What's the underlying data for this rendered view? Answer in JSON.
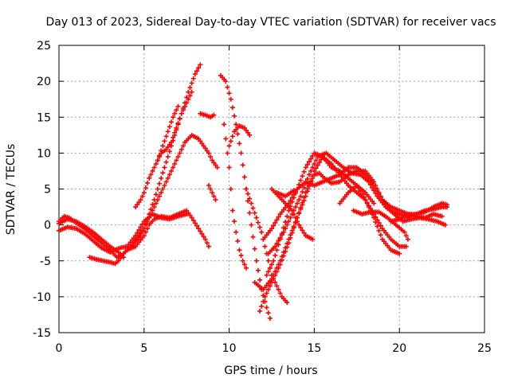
{
  "chart_data": {
    "type": "scatter",
    "title": "Day 013 of 2023, Sidereal Day-to-day VTEC variation (SDTVAR) for receiver vacs",
    "xlabel": "GPS time / hours",
    "ylabel": "SDTVAR / TECUs",
    "xlim": [
      0,
      25
    ],
    "ylim": [
      -15,
      25
    ],
    "xticks": [
      "0",
      "5",
      "10",
      "15",
      "20",
      "25"
    ],
    "yticks": [
      "-15",
      "-10",
      "-5",
      "0",
      "5",
      "10",
      "15",
      "20",
      "25"
    ],
    "grid": true,
    "marker": "+",
    "marker_color": "#ff0000",
    "legend": "none",
    "series": [
      {
        "points": [
          [
            0,
            0.5
          ],
          [
            0.3,
            1.2
          ],
          [
            0.6,
            1.0
          ],
          [
            1.0,
            0.3
          ],
          [
            1.5,
            -0.5
          ],
          [
            2.0,
            -1.5
          ],
          [
            2.5,
            -2.5
          ],
          [
            3.0,
            -3.5
          ],
          [
            3.4,
            -4.5
          ],
          [
            3.7,
            -4.2
          ],
          [
            4.0,
            -3.5
          ],
          [
            4.5,
            -3.0
          ],
          [
            5.0,
            -1.5
          ],
          [
            5.3,
            0.0
          ],
          [
            5.6,
            0.8
          ],
          [
            6.0,
            1.2
          ],
          [
            6.5,
            1.0
          ],
          [
            7.0,
            1.5
          ],
          [
            7.5,
            2.0
          ],
          [
            7.8,
            1.0
          ],
          [
            8.2,
            -0.5
          ],
          [
            8.6,
            -2.0
          ],
          [
            8.8,
            -3.0
          ]
        ]
      },
      {
        "points": [
          [
            0,
            -0.8
          ],
          [
            0.5,
            -0.3
          ],
          [
            1.0,
            -0.5
          ],
          [
            1.5,
            -1.2
          ],
          [
            2.0,
            -2.2
          ],
          [
            2.5,
            -3.2
          ],
          [
            3.0,
            -3.8
          ],
          [
            3.3,
            -3.5
          ],
          [
            3.6,
            -3.2
          ],
          [
            4.0,
            -3.0
          ],
          [
            4.5,
            -1.5
          ],
          [
            5.0,
            0.5
          ],
          [
            5.5,
            1.5
          ],
          [
            6.0,
            1.0
          ],
          [
            6.5,
            0.8
          ],
          [
            7.0,
            1.2
          ],
          [
            7.5,
            1.5
          ]
        ]
      },
      {
        "points": [
          [
            0,
            0.2
          ],
          [
            0.5,
            0.8
          ],
          [
            1.0,
            0.5
          ],
          [
            1.5,
            -0.2
          ],
          [
            2.0,
            -1.0
          ],
          [
            2.5,
            -2.0
          ],
          [
            3.0,
            -3.0
          ],
          [
            3.5,
            -3.8
          ],
          [
            3.8,
            -4.5
          ]
        ]
      },
      {
        "points": [
          [
            1.8,
            -4.5
          ],
          [
            2.2,
            -4.8
          ],
          [
            2.6,
            -5.0
          ],
          [
            3.0,
            -5.2
          ],
          [
            3.3,
            -5.4
          ],
          [
            3.5,
            -5.0
          ],
          [
            3.8,
            -4.0
          ],
          [
            4.2,
            -3.0
          ],
          [
            4.6,
            -2.0
          ],
          [
            5.0,
            -0.5
          ],
          [
            5.4,
            1.5
          ],
          [
            5.8,
            3.5
          ],
          [
            6.2,
            5.5
          ],
          [
            6.6,
            7.5
          ],
          [
            7.0,
            9.5
          ],
          [
            7.4,
            11.5
          ],
          [
            7.8,
            12.5
          ],
          [
            8.2,
            12.0
          ],
          [
            8.5,
            11.0
          ],
          [
            8.8,
            10.0
          ],
          [
            9.0,
            9.0
          ],
          [
            9.3,
            8.0
          ]
        ]
      },
      {
        "points": [
          [
            4.2,
            -3.2
          ],
          [
            4.6,
            -1.8
          ],
          [
            5.0,
            -0.5
          ],
          [
            5.3,
            1.5
          ],
          [
            5.6,
            3.5
          ],
          [
            6.0,
            6.5
          ],
          [
            6.4,
            9.5
          ],
          [
            6.8,
            12.5
          ],
          [
            7.2,
            15.5
          ],
          [
            7.6,
            18.5
          ],
          [
            8.0,
            21.0
          ],
          [
            8.3,
            22.3
          ]
        ]
      },
      {
        "points": [
          [
            4.5,
            2.5
          ],
          [
            4.8,
            3.5
          ],
          [
            5.0,
            4.5
          ],
          [
            5.3,
            6.5
          ],
          [
            5.6,
            8.0
          ],
          [
            6.0,
            10.0
          ],
          [
            6.3,
            10.5
          ],
          [
            6.6,
            11.5
          ],
          [
            6.9,
            13.5
          ],
          [
            7.2,
            15.5
          ],
          [
            7.5,
            17.0
          ],
          [
            7.8,
            18.5
          ]
        ]
      },
      {
        "points": [
          [
            5.8,
            9.0
          ],
          [
            6.1,
            11.0
          ],
          [
            6.4,
            13.0
          ],
          [
            6.7,
            15.0
          ],
          [
            7.0,
            16.5
          ]
        ]
      },
      {
        "points": [
          [
            8.3,
            15.5
          ],
          [
            8.6,
            15.3
          ],
          [
            8.9,
            15.0
          ],
          [
            9.1,
            15.3
          ]
        ]
      },
      {
        "points": [
          [
            8.8,
            5.5
          ],
          [
            9.0,
            4.5
          ],
          [
            9.2,
            3.5
          ]
        ]
      },
      {
        "points": [
          [
            9.5,
            20.8
          ],
          [
            9.8,
            20.0
          ],
          [
            10.1,
            17.5
          ],
          [
            10.4,
            14.0
          ],
          [
            10.7,
            10.0
          ],
          [
            11.0,
            5.0
          ],
          [
            11.3,
            0.0
          ],
          [
            11.6,
            -5.0
          ],
          [
            11.9,
            -9.0
          ],
          [
            12.2,
            -11.5
          ],
          [
            12.4,
            -13.0
          ]
        ]
      },
      {
        "points": [
          [
            9.7,
            14.0
          ],
          [
            10.0,
            8.0
          ],
          [
            10.2,
            2.0
          ],
          [
            10.4,
            -1.0
          ],
          [
            10.6,
            -3.5
          ],
          [
            10.8,
            -5.0
          ],
          [
            11.0,
            -6.0
          ]
        ]
      },
      {
        "points": [
          [
            10.0,
            11.0
          ],
          [
            10.3,
            13.0
          ],
          [
            10.6,
            13.8
          ],
          [
            10.9,
            13.5
          ],
          [
            11.2,
            12.5
          ]
        ]
      },
      {
        "points": [
          [
            11.0,
            5.0
          ],
          [
            11.3,
            3.0
          ],
          [
            11.6,
            1.0
          ],
          [
            11.9,
            -1.0
          ],
          [
            12.2,
            -4.0
          ],
          [
            12.5,
            -7.0
          ],
          [
            12.8,
            -8.5
          ],
          [
            13.1,
            -10.0
          ],
          [
            13.4,
            -10.8
          ]
        ]
      },
      {
        "points": [
          [
            11.5,
            -8.0
          ],
          [
            12.0,
            -9.0
          ],
          [
            12.5,
            -7.5
          ],
          [
            13.0,
            -5.0
          ],
          [
            13.5,
            -2.0
          ],
          [
            14.0,
            1.0
          ],
          [
            14.5,
            4.0
          ],
          [
            15.0,
            7.5
          ],
          [
            15.5,
            9.5
          ],
          [
            16.0,
            8.5
          ],
          [
            16.5,
            7.0
          ],
          [
            17.0,
            5.5
          ],
          [
            17.5,
            4.5
          ],
          [
            18.0,
            3.5
          ],
          [
            18.5,
            1.0
          ],
          [
            19.0,
            -2.0
          ],
          [
            19.5,
            -3.5
          ],
          [
            20.0,
            -4.0
          ]
        ]
      },
      {
        "points": [
          [
            12.2,
            -7.0
          ],
          [
            12.6,
            -5.0
          ],
          [
            13.0,
            -2.0
          ],
          [
            13.5,
            2.0
          ],
          [
            14.0,
            5.0
          ],
          [
            14.5,
            8.0
          ],
          [
            15.0,
            10.0
          ],
          [
            15.5,
            9.5
          ],
          [
            16.0,
            8.0
          ],
          [
            16.5,
            7.5
          ],
          [
            17.0,
            6.5
          ],
          [
            17.5,
            5.5
          ],
          [
            18.0,
            3.5
          ],
          [
            18.5,
            1.5
          ],
          [
            19.0,
            -0.5
          ],
          [
            19.5,
            -2.0
          ],
          [
            20.0,
            -3.0
          ],
          [
            20.4,
            -3.0
          ]
        ]
      },
      {
        "points": [
          [
            11.8,
            -12.0
          ],
          [
            12.1,
            -10.0
          ],
          [
            12.5,
            -8.0
          ],
          [
            13.0,
            -5.5
          ],
          [
            13.5,
            -2.5
          ],
          [
            14.0,
            1.0
          ],
          [
            14.5,
            4.5
          ],
          [
            15.0,
            7.0
          ],
          [
            15.3,
            7.2
          ],
          [
            15.6,
            6.5
          ],
          [
            16.0,
            5.8
          ],
          [
            16.5,
            6.0
          ],
          [
            17.0,
            7.0
          ],
          [
            17.5,
            7.5
          ],
          [
            18.0,
            7.5
          ],
          [
            18.5,
            6.0
          ],
          [
            19.0,
            3.5
          ],
          [
            19.5,
            2.0
          ],
          [
            20.0,
            1.5
          ],
          [
            20.5,
            1.0
          ],
          [
            21.0,
            1.5
          ],
          [
            21.5,
            2.0
          ],
          [
            22.0,
            2.2
          ],
          [
            22.5,
            2.5
          ],
          [
            22.8,
            2.5
          ]
        ]
      },
      {
        "points": [
          [
            12.0,
            -2.0
          ],
          [
            12.5,
            -0.5
          ],
          [
            13.0,
            1.5
          ],
          [
            13.5,
            3.0
          ],
          [
            14.0,
            5.0
          ],
          [
            14.5,
            6.0
          ],
          [
            15.0,
            5.5
          ],
          [
            15.5,
            6.0
          ],
          [
            16.0,
            6.5
          ],
          [
            16.5,
            7.0
          ],
          [
            17.0,
            8.0
          ],
          [
            17.5,
            8.0
          ],
          [
            18.0,
            7.0
          ],
          [
            18.5,
            5.5
          ],
          [
            19.0,
            3.5
          ],
          [
            19.5,
            2.5
          ],
          [
            20.0,
            2.0
          ],
          [
            20.5,
            1.5
          ],
          [
            21.0,
            1.5
          ],
          [
            21.5,
            1.8
          ],
          [
            22.0,
            2.5
          ],
          [
            22.5,
            3.0
          ],
          [
            22.8,
            2.8
          ]
        ]
      },
      {
        "points": [
          [
            12.3,
            -4.0
          ],
          [
            12.7,
            -3.0
          ],
          [
            13.2,
            -1.0
          ],
          [
            13.7,
            1.5
          ],
          [
            14.2,
            4.0
          ],
          [
            14.7,
            7.0
          ],
          [
            15.2,
            9.5
          ],
          [
            15.7,
            10.0
          ],
          [
            16.2,
            9.0
          ],
          [
            16.7,
            8.0
          ],
          [
            17.2,
            7.2
          ],
          [
            17.7,
            7.0
          ],
          [
            18.2,
            6.0
          ],
          [
            18.7,
            4.0
          ],
          [
            19.2,
            2.5
          ],
          [
            19.7,
            1.5
          ],
          [
            20.2,
            0.5
          ],
          [
            20.7,
            0.8
          ],
          [
            21.2,
            1.0
          ],
          [
            21.7,
            0.8
          ],
          [
            22.2,
            0.5
          ],
          [
            22.7,
            0.0
          ]
        ]
      },
      {
        "points": [
          [
            12.5,
            5.0
          ],
          [
            12.9,
            4.0
          ],
          [
            13.3,
            3.0
          ],
          [
            13.7,
            2.0
          ],
          [
            14.1,
            0.0
          ],
          [
            14.5,
            -1.5
          ],
          [
            14.9,
            -2.0
          ]
        ]
      },
      {
        "points": [
          [
            12.8,
            4.5
          ],
          [
            13.3,
            4.0
          ],
          [
            13.8,
            4.8
          ]
        ]
      },
      {
        "points": [
          [
            16.5,
            3.0
          ],
          [
            17.0,
            4.5
          ],
          [
            17.5,
            5.5
          ],
          [
            18.0,
            4.5
          ],
          [
            18.5,
            3.0
          ]
        ]
      },
      {
        "points": [
          [
            17.3,
            2.0
          ],
          [
            17.8,
            1.5
          ],
          [
            18.3,
            1.8
          ],
          [
            18.8,
            1.8
          ],
          [
            19.3,
            1.0
          ],
          [
            19.8,
            0.0
          ],
          [
            20.3,
            -1.0
          ],
          [
            20.5,
            -2.0
          ]
        ]
      },
      {
        "points": [
          [
            19.5,
            0.5
          ],
          [
            20.0,
            0.8
          ],
          [
            20.5,
            1.5
          ],
          [
            21.0,
            1.2
          ],
          [
            21.5,
            1.0
          ],
          [
            22.0,
            1.5
          ],
          [
            22.5,
            1.2
          ]
        ]
      }
    ]
  }
}
